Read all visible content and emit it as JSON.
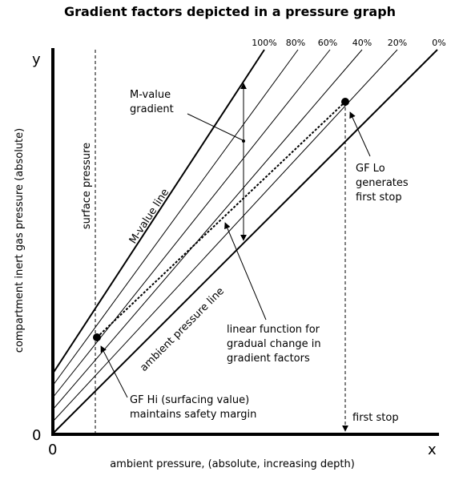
{
  "title": "Gradient factors depicted in a pressure graph",
  "axes": {
    "x_letter": "x",
    "y_letter": "y",
    "origin_x": "0",
    "origin_y": "0",
    "x_label": "ambient pressure, (absolute, increasing depth)",
    "y_label": "compartment inert gas pressure (absolute)"
  },
  "gradient_percent_labels": [
    "100%",
    "80%",
    "60%",
    "40%",
    "20%",
    "0%"
  ],
  "labels": {
    "surface_pressure": "surface pressure",
    "m_value_line": "M-value line",
    "ambient_pressure_line": "ambient pressure line",
    "m_value_gradient_line1": "M-value",
    "m_value_gradient_line2": "gradient",
    "gf_lo_line1": "GF Lo",
    "gf_lo_line2": "generates",
    "gf_lo_line3": "first stop",
    "linear_function_line1": "linear function for",
    "linear_function_line2": "gradual change in",
    "linear_function_line3": "gradient factors",
    "gf_hi_line1": "GF Hi (surfacing value)",
    "gf_hi_line2": "maintains safety margin",
    "first_stop": "first stop"
  }
}
